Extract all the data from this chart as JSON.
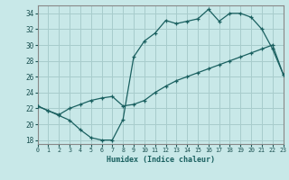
{
  "xlabel": "Humidex (Indice chaleur)",
  "ylabel": "",
  "bg_color": "#c8e8e8",
  "grid_color": "#a8cccc",
  "line_color": "#1a6060",
  "line1_x": [
    0,
    1,
    2,
    3,
    4,
    5,
    6,
    7,
    8,
    9,
    10,
    11,
    12,
    13,
    14,
    15,
    16,
    17,
    18,
    19,
    20,
    21,
    22,
    23
  ],
  "line1_y": [
    22.3,
    21.7,
    21.1,
    20.5,
    19.3,
    18.3,
    18.0,
    18.0,
    20.6,
    28.5,
    30.5,
    31.5,
    33.1,
    32.7,
    33.0,
    33.3,
    34.5,
    33.0,
    34.0,
    34.0,
    33.5,
    32.0,
    29.5,
    26.3
  ],
  "line2_x": [
    0,
    1,
    2,
    3,
    4,
    5,
    6,
    7,
    8,
    9,
    10,
    11,
    12,
    13,
    14,
    15,
    16,
    17,
    18,
    19,
    20,
    21,
    22,
    23
  ],
  "line2_y": [
    22.3,
    21.7,
    21.2,
    22.0,
    22.5,
    23.0,
    23.3,
    23.5,
    22.3,
    22.5,
    23.0,
    24.0,
    24.8,
    25.5,
    26.0,
    26.5,
    27.0,
    27.5,
    28.0,
    28.5,
    29.0,
    29.5,
    30.0,
    26.3
  ],
  "xlim": [
    0,
    23
  ],
  "ylim": [
    17.5,
    35.0
  ],
  "yticks": [
    18,
    20,
    22,
    24,
    26,
    28,
    30,
    32,
    34
  ],
  "xticks": [
    0,
    1,
    2,
    3,
    4,
    5,
    6,
    7,
    8,
    9,
    10,
    11,
    12,
    13,
    14,
    15,
    16,
    17,
    18,
    19,
    20,
    21,
    22,
    23
  ]
}
